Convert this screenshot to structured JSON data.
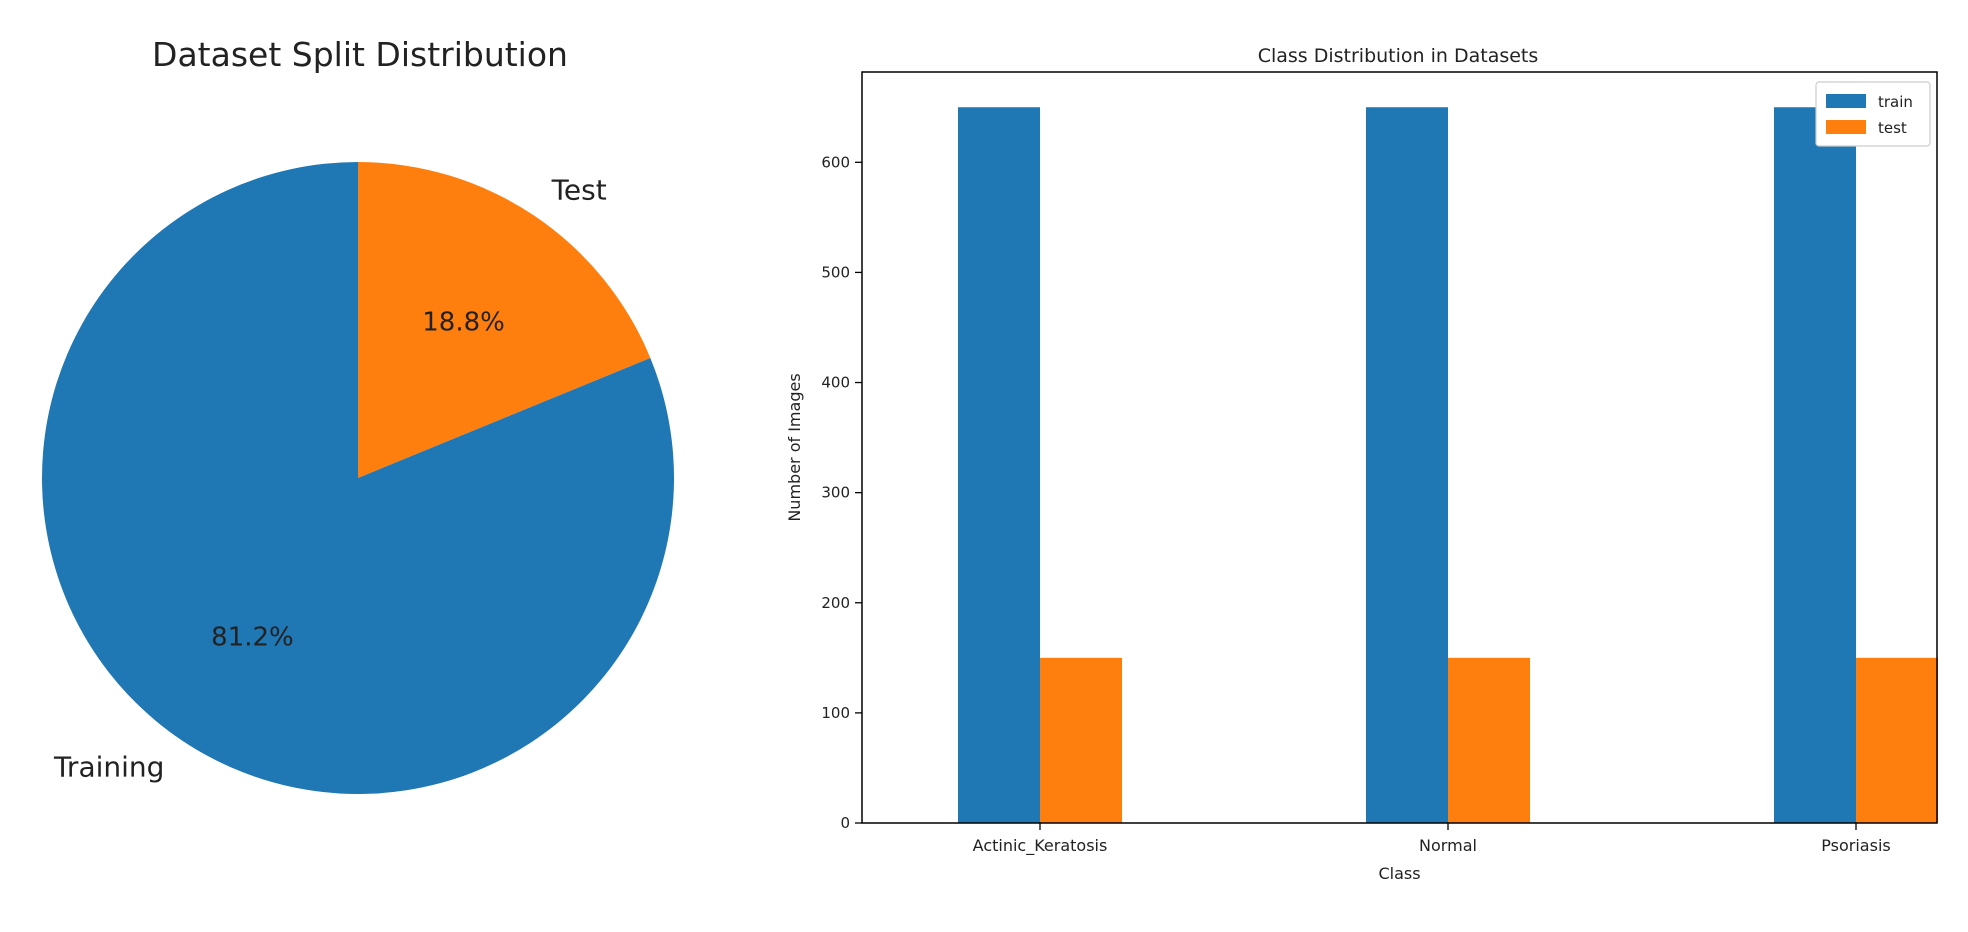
{
  "colors": {
    "train": "#1f77b4",
    "test": "#ff7f0e",
    "axis": "#000000"
  },
  "chart_data": [
    {
      "type": "pie",
      "title": "Dataset Split Distribution",
      "slices": [
        {
          "label": "Training",
          "value": 81.2,
          "pct_label": "81.2%",
          "color": "#1f77b4"
        },
        {
          "label": "Test",
          "value": 18.8,
          "pct_label": "18.8%",
          "color": "#ff7f0e"
        }
      ]
    },
    {
      "type": "bar",
      "title": "Class Distribution in Datasets",
      "xlabel": "Class",
      "ylabel": "Number of Images",
      "categories": [
        "Actinic_Keratosis",
        "Normal",
        "Psoriasis"
      ],
      "series": [
        {
          "name": "train",
          "values": [
            650,
            650,
            650
          ],
          "color": "#1f77b4"
        },
        {
          "name": "test",
          "values": [
            150,
            150,
            150
          ],
          "color": "#ff7f0e"
        }
      ],
      "ylim": [
        0,
        682
      ],
      "yticks": [
        0,
        100,
        200,
        300,
        400,
        500,
        600
      ],
      "legend": "top-right",
      "grid": false
    }
  ]
}
